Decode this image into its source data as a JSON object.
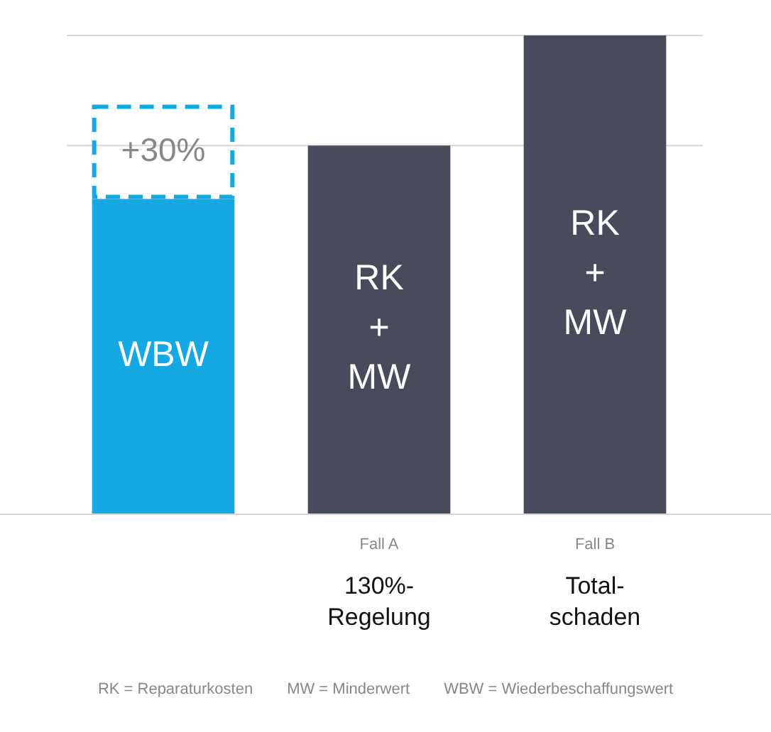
{
  "chart_data": {
    "type": "bar",
    "stacked": true,
    "legend": false,
    "tick_labels": "x",
    "ylim": [
      0,
      152
    ],
    "categories": [
      null,
      "Fall A\n130%-\nRegelung",
      "Fall B\nTotal-\nschaden"
    ],
    "series": [
      {
        "colors": [
          "#16a8e3",
          "#474c5c",
          "#474c5c"
        ],
        "values": [
          100,
          117,
          152
        ],
        "value_labels": [
          "WBW",
          "RK\n+\nMW",
          "RK\n+\nMW"
        ]
      },
      {
        "color": "#16a8e3",
        "line_style": "dashed",
        "values": [
          30,
          null,
          null
        ],
        "value_labels": [
          "+30%",
          null,
          null
        ]
      }
    ],
    "ref_lines": [
      {
        "axis": "y",
        "value": 152,
        "color": "#d6d6d6"
      },
      {
        "axis": "y",
        "value": 117,
        "color": "#d6d6d6"
      }
    ],
    "annotations": [
      "RK = Reparaturkosten",
      "MW = Minderwert",
      "WBW = Wiederbeschaffungswert"
    ]
  }
}
